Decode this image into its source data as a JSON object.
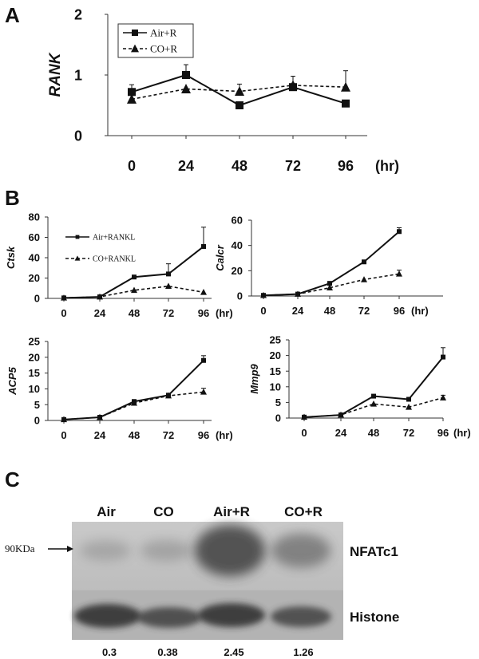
{
  "panel_labels": [
    "A",
    "B",
    "C"
  ],
  "chart_data": [
    {
      "panel": "A",
      "type": "line",
      "ylabel": "RANK",
      "x": [
        0,
        24,
        48,
        72,
        96
      ],
      "x_unit": "(hr)",
      "ylim": [
        0,
        2
      ],
      "yticks": [
        0,
        1,
        2
      ],
      "series": [
        {
          "name": "Air+R",
          "values": [
            0.72,
            1.0,
            0.5,
            0.8,
            0.53
          ],
          "err": [
            0.12,
            0.17,
            0.0,
            0.0,
            0.0
          ],
          "marker": "square",
          "dash": "solid"
        },
        {
          "name": "CO+R",
          "values": [
            0.6,
            0.77,
            0.73,
            0.83,
            0.8
          ],
          "err": [
            0.0,
            0.0,
            0.12,
            0.15,
            0.27
          ],
          "marker": "triangle",
          "dash": "dashed"
        }
      ],
      "legend": "top-left"
    },
    {
      "panel": "B",
      "type": "line",
      "ylabel": "Ctsk",
      "x": [
        0,
        24,
        48,
        72,
        96
      ],
      "x_unit": "(hr)",
      "ylim": [
        0,
        80
      ],
      "yticks": [
        0,
        20,
        40,
        60,
        80
      ],
      "series": [
        {
          "name": "Air+RANKL",
          "values": [
            0.5,
            1.5,
            21,
            24,
            51
          ],
          "err": [
            0,
            0,
            0,
            10,
            19
          ],
          "marker": "square",
          "dash": "solid"
        },
        {
          "name": "CO+RANKL",
          "values": [
            0.5,
            1.5,
            8,
            12,
            6
          ],
          "err": [
            0,
            0,
            0,
            0,
            0
          ],
          "marker": "triangle",
          "dash": "dashed"
        }
      ],
      "legend": "top-left"
    },
    {
      "panel": "B",
      "type": "line",
      "ylabel": "Calcr",
      "x": [
        0,
        24,
        48,
        72,
        96
      ],
      "x_unit": "(hr)",
      "ylim": [
        0,
        60
      ],
      "yticks": [
        0,
        20,
        40,
        60
      ],
      "series": [
        {
          "values": [
            0.5,
            1.5,
            10,
            27,
            51
          ],
          "err": [
            0,
            0,
            0,
            0,
            3
          ],
          "marker": "square",
          "dash": "solid"
        },
        {
          "values": [
            0.5,
            1.5,
            6.5,
            13,
            17.5
          ],
          "err": [
            0,
            0,
            0,
            0,
            3
          ],
          "marker": "triangle",
          "dash": "dashed"
        }
      ]
    },
    {
      "panel": "B",
      "type": "line",
      "ylabel": "ACP5",
      "x": [
        0,
        24,
        48,
        72,
        96
      ],
      "x_unit": "(hr)",
      "ylim": [
        0,
        25
      ],
      "yticks": [
        0,
        5,
        10,
        15,
        20,
        25
      ],
      "series": [
        {
          "values": [
            0.3,
            1,
            6,
            8,
            19
          ],
          "err": [
            0,
            0,
            0.5,
            0,
            1.5
          ],
          "marker": "square",
          "dash": "solid"
        },
        {
          "values": [
            0.3,
            1,
            5.5,
            7.8,
            9
          ],
          "err": [
            0,
            0,
            0.5,
            0,
            1.2
          ],
          "marker": "triangle",
          "dash": "dashed"
        }
      ]
    },
    {
      "panel": "B",
      "type": "line",
      "ylabel": "Mmp9",
      "x": [
        0,
        24,
        48,
        72,
        96
      ],
      "x_unit": "(hr)",
      "ylim": [
        0,
        25
      ],
      "yticks": [
        0,
        5,
        10,
        15,
        20,
        25
      ],
      "series": [
        {
          "values": [
            0.3,
            1,
            7,
            6,
            19.5
          ],
          "err": [
            0,
            0,
            0,
            0,
            3
          ],
          "marker": "square",
          "dash": "solid"
        },
        {
          "values": [
            0.3,
            1,
            4.5,
            3.5,
            6.5
          ],
          "err": [
            0,
            0,
            0,
            0,
            0.8
          ],
          "marker": "triangle",
          "dash": "dashed"
        }
      ]
    }
  ],
  "blot": {
    "lanes": [
      "Air",
      "CO",
      "Air+R",
      "CO+R"
    ],
    "marker_label": "90KDa",
    "band_labels": [
      "NFATc1",
      "Histone"
    ],
    "quantification": [
      "0.3",
      "0.38",
      "2.45",
      "1.26"
    ],
    "nfatc1_intensity": [
      0.3,
      0.38,
      2.45,
      1.26
    ]
  }
}
